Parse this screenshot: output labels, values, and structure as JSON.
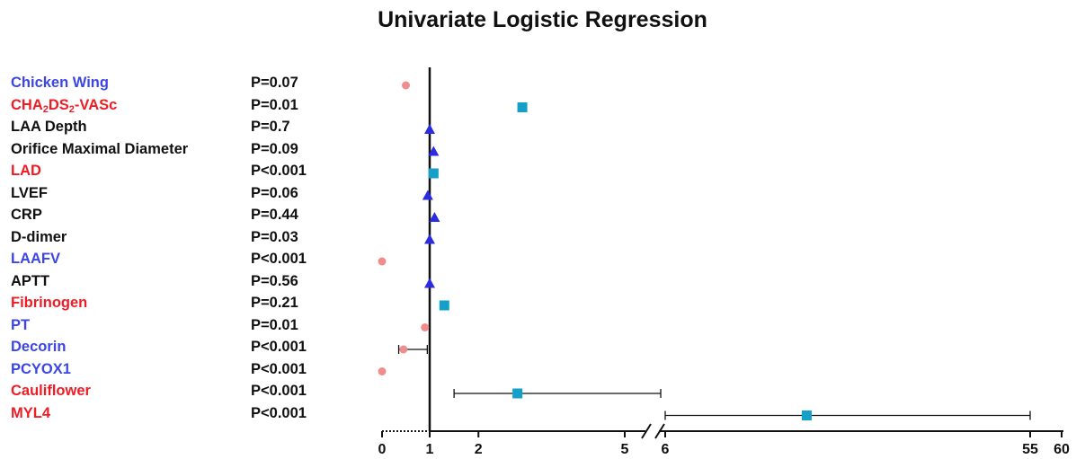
{
  "chart_data": {
    "type": "forest",
    "title": "Univariate Logistic Regression",
    "reference_line": 1,
    "x_axis": {
      "segments": [
        {
          "range": [
            0,
            5
          ],
          "ticks": [
            0,
            1,
            2,
            5
          ],
          "note": "0-1 region compressed (dotted)"
        },
        {
          "range": [
            6,
            60
          ],
          "ticks": [
            6,
            55,
            60
          ]
        }
      ],
      "tick_labels": [
        "0",
        "1",
        "2",
        "5",
        "6",
        "55",
        "60"
      ],
      "axis_break": true
    },
    "colors": {
      "red": "#ee1c25",
      "blue": "#3c46e6",
      "black": "#111111",
      "circle": "#f08c8c",
      "triangle": "#2b2be0",
      "square": "#14a0c8",
      "line": "#111111"
    },
    "rows": [
      {
        "label": "Chicken Wing",
        "label_color": "blue",
        "p": "P=0.07",
        "marker": "circle",
        "or": 0.5,
        "ci": null
      },
      {
        "label_parts": [
          "CHA",
          "2",
          "DS",
          "2",
          "-VASc"
        ],
        "label_color": "red",
        "p": "P=0.01",
        "marker": "square",
        "or": 2.9,
        "ci": null
      },
      {
        "label": "LAA Depth",
        "label_color": "black",
        "p": "P=0.7",
        "marker": "triangle",
        "or": 1.0,
        "ci": null
      },
      {
        "label": "Orifice Maximal Diameter",
        "label_color": "black",
        "p": "P=0.09",
        "marker": "triangle",
        "or": 1.08,
        "ci": null
      },
      {
        "label": "LAD",
        "label_color": "red",
        "p": "P<0.001",
        "marker": "square",
        "or": 1.08,
        "ci": null
      },
      {
        "label": "LVEF",
        "label_color": "black",
        "p": "P=0.06",
        "marker": "triangle",
        "or": 0.96,
        "ci": null
      },
      {
        "label": "CRP",
        "label_color": "black",
        "p": "P=0.44",
        "marker": "triangle",
        "or": 1.1,
        "ci": null
      },
      {
        "label": "D-dimer",
        "label_color": "black",
        "p": "P=0.03",
        "marker": "triangle",
        "or": 1.0,
        "ci": null
      },
      {
        "label": "LAAFV",
        "label_color": "blue",
        "p": "P<0.001",
        "marker": "circle",
        "or": 0.0,
        "ci": null
      },
      {
        "label": "APTT",
        "label_color": "black",
        "p": "P=0.56",
        "marker": "triangle",
        "or": 1.0,
        "ci": null
      },
      {
        "label": "Fibrinogen",
        "label_color": "red",
        "p": "P=0.21",
        "marker": "square",
        "or": 1.3,
        "ci": null
      },
      {
        "label": "PT",
        "label_color": "blue",
        "p": "P=0.01",
        "marker": "circle",
        "or": 0.9,
        "ci": null
      },
      {
        "label": "Decorin",
        "label_color": "blue",
        "p": "P<0.001",
        "marker": "circle",
        "or": 0.45,
        "ci": [
          0.35,
          0.95
        ]
      },
      {
        "label": "PCYOX1",
        "label_color": "blue",
        "p": "P<0.001",
        "marker": "circle",
        "or": 0.0,
        "ci": null
      },
      {
        "label": "Cauliflower",
        "label_color": "red",
        "p": "P<0.001",
        "marker": "square",
        "or": 2.8,
        "ci": [
          1.5,
          5.4
        ]
      },
      {
        "label": "MYL4",
        "label_color": "red",
        "p": "P<0.001",
        "marker": "square",
        "or": 25,
        "ci": [
          6,
          55
        ]
      }
    ]
  }
}
